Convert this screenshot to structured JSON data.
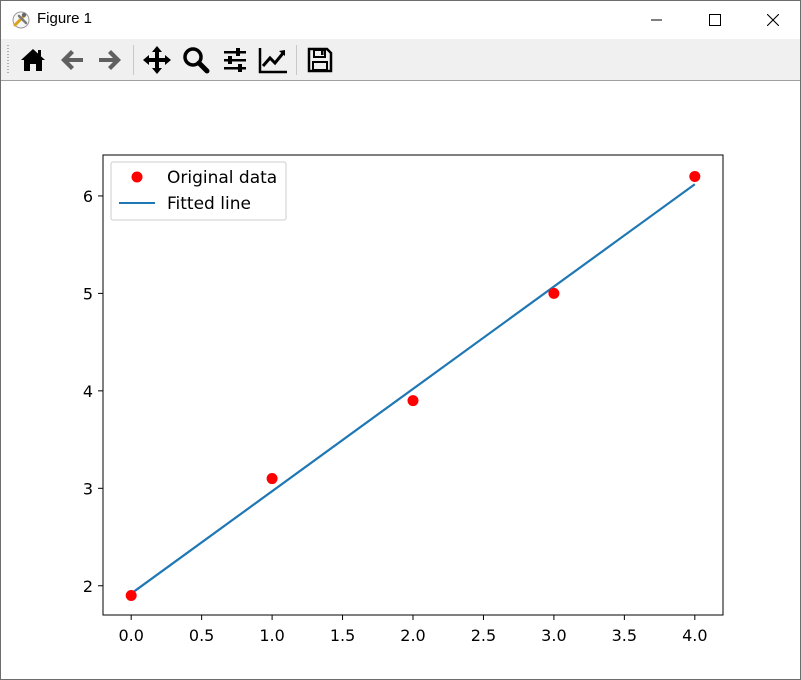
{
  "window": {
    "title": "Figure 1",
    "controls": [
      "minimize",
      "maximize",
      "close"
    ]
  },
  "toolbar": {
    "buttons": [
      {
        "name": "home",
        "icon": "home-icon"
      },
      {
        "name": "back",
        "icon": "arrow-left-icon"
      },
      {
        "name": "forward",
        "icon": "arrow-right-icon"
      },
      {
        "name": "pan",
        "icon": "move-icon"
      },
      {
        "name": "zoom",
        "icon": "magnifier-icon"
      },
      {
        "name": "subplots",
        "icon": "sliders-icon"
      },
      {
        "name": "customize",
        "icon": "line-chart-icon"
      },
      {
        "name": "save",
        "icon": "floppy-icon"
      }
    ]
  },
  "chart_data": {
    "type": "scatter",
    "series": [
      {
        "name": "Original data",
        "kind": "scatter",
        "color": "#ff0000",
        "x": [
          0,
          1,
          2,
          3,
          4
        ],
        "y": [
          1.9,
          3.1,
          3.9,
          5.0,
          6.2
        ]
      },
      {
        "name": "Fitted line",
        "kind": "line",
        "color": "#1f77b4",
        "x": [
          0,
          4
        ],
        "y": [
          1.92,
          6.12
        ]
      }
    ],
    "xticks": [
      "0.0",
      "0.5",
      "1.0",
      "1.5",
      "2.0",
      "2.5",
      "3.0",
      "3.5",
      "4.0"
    ],
    "yticks": [
      "2",
      "3",
      "4",
      "5",
      "6"
    ],
    "xlim": [
      -0.2,
      4.2
    ],
    "ylim": [
      1.7,
      6.42
    ],
    "grid": false,
    "legend_position": "upper-left"
  }
}
